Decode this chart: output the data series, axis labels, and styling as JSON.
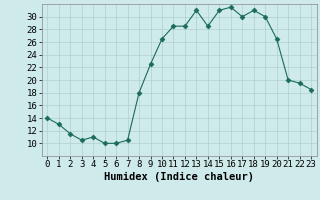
{
  "x": [
    0,
    1,
    2,
    3,
    4,
    5,
    6,
    7,
    8,
    9,
    10,
    11,
    12,
    13,
    14,
    15,
    16,
    17,
    18,
    19,
    20,
    21,
    22,
    23
  ],
  "y": [
    14,
    13,
    11.5,
    10.5,
    11,
    10,
    10,
    10.5,
    18,
    22.5,
    26.5,
    28.5,
    28.5,
    31,
    28.5,
    31,
    31.5,
    30,
    31,
    30,
    26.5,
    20,
    19.5,
    18.5
  ],
  "line_color": "#1a6b5a",
  "marker": "D",
  "marker_size": 2.5,
  "background_color": "#ceeaea",
  "grid_color": "#afd0d0",
  "xlabel": "Humidex (Indice chaleur)",
  "xlim": [
    -0.5,
    23.5
  ],
  "ylim": [
    8,
    32
  ],
  "yticks": [
    10,
    12,
    14,
    16,
    18,
    20,
    22,
    24,
    26,
    28,
    30
  ],
  "xticks": [
    0,
    1,
    2,
    3,
    4,
    5,
    6,
    7,
    8,
    9,
    10,
    11,
    12,
    13,
    14,
    15,
    16,
    17,
    18,
    19,
    20,
    21,
    22,
    23
  ],
  "tick_label_fontsize": 6.5,
  "xlabel_fontsize": 7.5
}
